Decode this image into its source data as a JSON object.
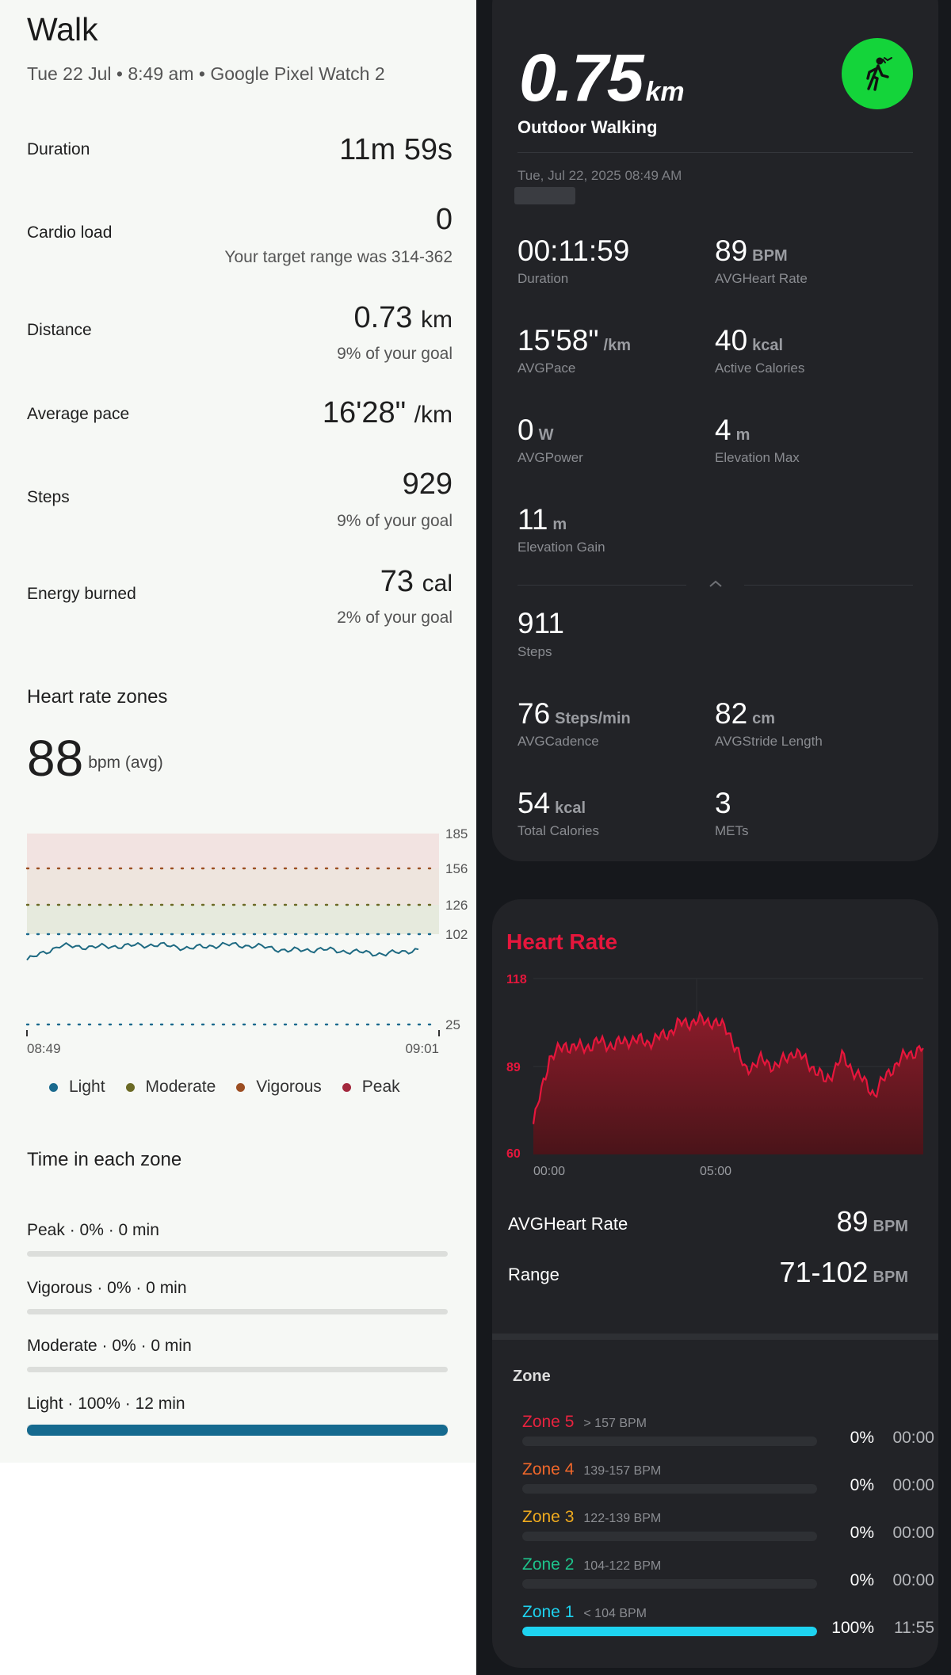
{
  "left": {
    "title": "Walk",
    "subtitle": "Tue 22 Jul • 8:49 am • Google Pixel Watch 2",
    "metrics": [
      {
        "label": "Duration",
        "value": "11m 59s",
        "unit": "",
        "note": ""
      },
      {
        "label": "Cardio load",
        "value": "0",
        "unit": "",
        "note": "Your target range was 314-362"
      },
      {
        "label": "Distance",
        "value": "0.73",
        "unit": "km",
        "note": "9% of your goal"
      },
      {
        "label": "Average pace",
        "value": "16'28\"",
        "unit": "/km",
        "note": ""
      },
      {
        "label": "Steps",
        "value": "929",
        "unit": "",
        "note": "9% of your goal"
      },
      {
        "label": "Energy burned",
        "value": "73",
        "unit": "cal",
        "note": "2% of your goal"
      }
    ],
    "hr_zones_title": "Heart rate zones",
    "hr_avg_value": "88",
    "hr_avg_unit": "bpm (avg)",
    "legend": [
      {
        "label": "Light",
        "color": "#1a6a8e"
      },
      {
        "label": "Moderate",
        "color": "#6b6a25"
      },
      {
        "label": "Vigorous",
        "color": "#9c4e22"
      },
      {
        "label": "Peak",
        "color": "#a3283d"
      }
    ],
    "time_in_zone_title": "Time in each zone",
    "zones": [
      {
        "label": "Peak · 0% · 0 min",
        "fraction": 0,
        "color": "#1a6a8e"
      },
      {
        "label": "Vigorous · 0% · 0 min",
        "fraction": 0,
        "color": "#1a6a8e"
      },
      {
        "label": "Moderate · 0% · 0 min",
        "fraction": 0,
        "color": "#1a6a8e"
      },
      {
        "label": "Light · 100% · 12 min",
        "fraction": 1,
        "color": "#156a8f"
      }
    ]
  },
  "right": {
    "distance_value": "0.75",
    "distance_unit": "km",
    "activity_name": "Outdoor Walking",
    "activity_icon": "walking-person-icon",
    "date": "Tue, Jul 22, 2025 08:49 AM",
    "stats": [
      {
        "value": "00:11:59",
        "unit": "",
        "label": "Duration"
      },
      {
        "value": "89",
        "unit": "BPM",
        "label": "AVGHeart Rate"
      },
      {
        "value": "15'58\"",
        "unit": "/km",
        "label": "AVGPace"
      },
      {
        "value": "40",
        "unit": "kcal",
        "label": "Active Calories"
      },
      {
        "value": "0",
        "unit": "W",
        "label": "AVGPower"
      },
      {
        "value": "4",
        "unit": "m",
        "label": "Elevation Max"
      },
      {
        "value": "11",
        "unit": "m",
        "label": "Elevation Gain"
      },
      {
        "value": "911",
        "unit": "",
        "label": "Steps"
      },
      {
        "value": "76",
        "unit": "Steps/min",
        "label": "AVGCadence"
      },
      {
        "value": "82",
        "unit": "cm",
        "label": "AVGStride Length"
      },
      {
        "value": "54",
        "unit": "kcal",
        "label": "Total Calories"
      },
      {
        "value": "3",
        "unit": "",
        "label": "METs"
      }
    ],
    "heart_rate_title": "Heart Rate",
    "avg_hr_label": "AVGHeart Rate",
    "avg_hr_value": "89",
    "avg_hr_unit": "BPM",
    "range_label": "Range",
    "range_value": "71-102",
    "range_unit": "BPM",
    "zone_title": "Zone",
    "zones": [
      {
        "name": "Zone 5",
        "bpm": "> 157 BPM",
        "pct": "0%",
        "time": "00:00",
        "fraction": 0,
        "color": "#e8233f"
      },
      {
        "name": "Zone 4",
        "bpm": "139-157 BPM",
        "pct": "0%",
        "time": "00:00",
        "fraction": 0,
        "color": "#f0672a"
      },
      {
        "name": "Zone 3",
        "bpm": "122-139 BPM",
        "pct": "0%",
        "time": "00:00",
        "fraction": 0,
        "color": "#efaa1e"
      },
      {
        "name": "Zone 2",
        "bpm": "104-122 BPM",
        "pct": "0%",
        "time": "00:00",
        "fraction": 0,
        "color": "#1ec48c"
      },
      {
        "name": "Zone 1",
        "bpm": "< 104 BPM",
        "pct": "100%",
        "time": "11:55",
        "fraction": 1,
        "color": "#1ed3f0"
      }
    ]
  },
  "chart_data": [
    {
      "type": "line",
      "x": [
        "08:49",
        "08:50",
        "08:51",
        "08:52",
        "08:53",
        "08:54",
        "08:55",
        "08:56",
        "08:57",
        "08:58",
        "08:59",
        "09:00",
        "09:01"
      ],
      "series": [
        {
          "values": [
            80,
            92,
            91,
            92,
            93,
            90,
            93,
            92,
            88,
            89,
            87,
            85,
            89
          ]
        }
      ],
      "zone_thresholds": [
        102,
        126,
        156,
        185
      ],
      "y_ticks": [
        185,
        156,
        126,
        102,
        25
      ],
      "x_ticks": [
        "08:49",
        "09:01"
      ],
      "ylim": [
        25,
        185
      ]
    },
    {
      "type": "area",
      "x": [
        "00:00",
        "00:30",
        "01:00",
        "01:30",
        "02:00",
        "02:30",
        "03:00",
        "03:30",
        "04:00",
        "04:30",
        "05:00",
        "05:30",
        "06:00",
        "06:30",
        "07:00",
        "07:30",
        "08:00",
        "08:30",
        "09:00",
        "09:30",
        "10:00",
        "10:30",
        "11:00",
        "11:30",
        "12:00"
      ],
      "series": [
        {
          "values": [
            70,
            92,
            96,
            95,
            97,
            96,
            98,
            97,
            99,
            103,
            104,
            104,
            101,
            88,
            91,
            89,
            94,
            90,
            84,
            92,
            86,
            80,
            88,
            93,
            95
          ]
        }
      ],
      "y_ticks": [
        118,
        89,
        60
      ],
      "x_ticks": [
        "00:00",
        "05:00"
      ],
      "ylim": [
        60,
        118
      ]
    }
  ]
}
